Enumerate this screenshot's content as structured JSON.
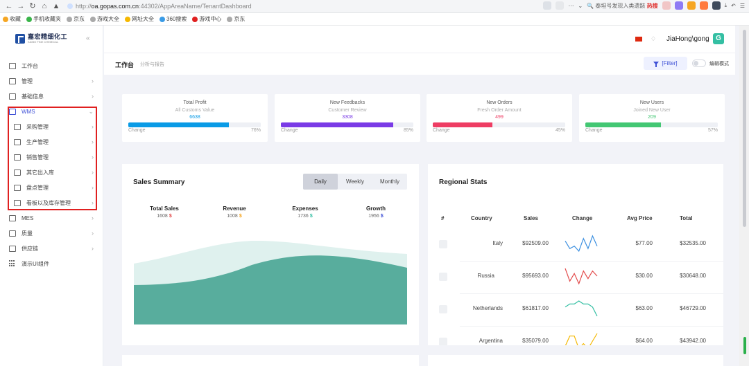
{
  "browser": {
    "url_prefix": "http://",
    "url_host": "oa.gopas.com.cn",
    "url_path": ":44302/AppAreaName/TenantDashboard",
    "search_text": "泰坦号发现入类遗骸",
    "hot_label": "热搜",
    "bookmarks": [
      "收藏",
      "手机收藏夹",
      "京东",
      "游戏大全",
      "网址大全",
      "360搜索",
      "游戏中心",
      "京东"
    ]
  },
  "sidebar": {
    "logo_cn": "嘉宏精细化工",
    "logo_en": "KAIBO FINE CHEMICAL",
    "items": [
      {
        "label": "工作台",
        "chevron": false
      },
      {
        "label": "管理",
        "chevron": true
      },
      {
        "label": "基础信息",
        "chevron": true
      },
      {
        "label": "WMS",
        "chevron": true,
        "active": true
      },
      {
        "label": "采购管理",
        "chevron": true
      },
      {
        "label": "生产管理",
        "chevron": true
      },
      {
        "label": "销售管理",
        "chevron": true
      },
      {
        "label": "其它出入库",
        "chevron": true
      },
      {
        "label": "盘点管理",
        "chevron": true
      },
      {
        "label": "看板以及库存管理",
        "chevron": true
      },
      {
        "label": "MES",
        "chevron": true
      },
      {
        "label": "质量",
        "chevron": true
      },
      {
        "label": "供应链",
        "chevron": true
      },
      {
        "label": "演示UI组件",
        "chevron": false
      }
    ]
  },
  "header": {
    "username": "JiaHong\\gong",
    "avatar_letter": "G",
    "page_title": "工作台",
    "page_subtitle": "分析与报告",
    "filter_label": "[Filter]",
    "edit_mode_label": "编辑模式"
  },
  "kpis": [
    {
      "title": "Total Profit",
      "subtitle": "All Customs Value",
      "value": "6638",
      "change_label": "Change",
      "percent": 76,
      "percent_label": "76%",
      "color": "#0a9be6"
    },
    {
      "title": "New Feedbacks",
      "subtitle": "Customer Review",
      "value": "3308",
      "change_label": "Change",
      "percent": 85,
      "percent_label": "85%",
      "color": "#7a3be6"
    },
    {
      "title": "New Orders",
      "subtitle": "Fresh Order Amount",
      "value": "499",
      "change_label": "Change",
      "percent": 45,
      "percent_label": "45%",
      "color": "#ee3d63"
    },
    {
      "title": "New Users",
      "subtitle": "Joined New User",
      "value": "209",
      "change_label": "Change",
      "percent": 57,
      "percent_label": "57%",
      "color": "#43c773"
    }
  ],
  "sales": {
    "title": "Sales Summary",
    "tabs": [
      "Daily",
      "Weekly",
      "Monthly"
    ],
    "active_tab": 0,
    "stats": [
      {
        "label": "Total Sales",
        "value": "1608",
        "currency": "$",
        "color": "#e34c4c"
      },
      {
        "label": "Revenue",
        "value": "1008",
        "currency": "$",
        "color": "#f5a623"
      },
      {
        "label": "Expenses",
        "value": "1736",
        "currency": "$",
        "color": "#34bfa3"
      },
      {
        "label": "Growth",
        "value": "1956",
        "currency": "$",
        "color": "#3f51d6"
      }
    ],
    "colors": {
      "back": "#dff1ee",
      "front": "#58ad9d"
    }
  },
  "regional": {
    "title": "Regional Stats",
    "headers": [
      "#",
      "Country",
      "Sales",
      "Change",
      "Avg Price",
      "Total"
    ],
    "rows": [
      {
        "country": "Italy",
        "sales": "$92509.00",
        "avg": "$77.00",
        "total": "$32535.00",
        "spark_color": "#3b8fe0",
        "trend": [
          4,
          1,
          2,
          0,
          5,
          1,
          6,
          2
        ]
      },
      {
        "country": "Russia",
        "sales": "$95693.00",
        "avg": "$30.00",
        "total": "$30648.00",
        "spark_color": "#e34c4c",
        "trend": [
          6,
          1,
          4,
          0,
          5,
          2,
          5,
          3
        ]
      },
      {
        "country": "Netherlands",
        "sales": "$61817.00",
        "avg": "$63.00",
        "total": "$46729.00",
        "spark_color": "#34bfa3",
        "trend": [
          3,
          4,
          4,
          5,
          4,
          4,
          3,
          0
        ]
      },
      {
        "country": "Argentina",
        "sales": "$35079.00",
        "avg": "$64.00",
        "total": "$43942.00",
        "spark_color": "#f5b800",
        "trend": [
          1,
          5,
          5,
          0,
          2,
          0,
          3,
          6
        ]
      }
    ]
  }
}
